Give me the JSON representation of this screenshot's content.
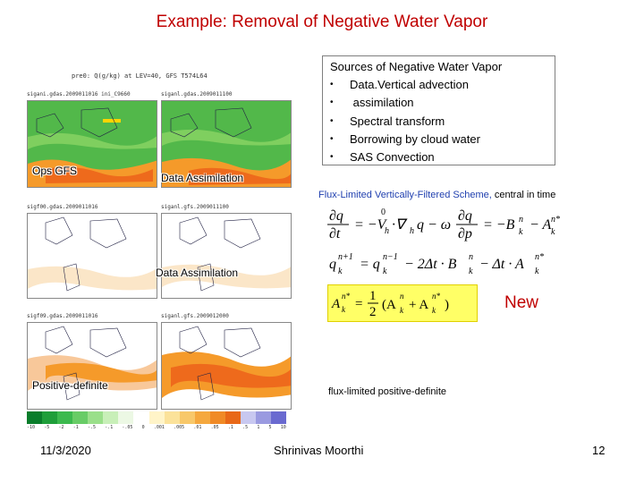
{
  "slide": {
    "title": "Example: Removal of Negative Water Vapor",
    "date": "11/3/2020",
    "author": "Shrinivas Moorthi",
    "page_number": "12"
  },
  "maps": {
    "header": "pre0: Q(g/kg) at LEV=40, GFS T574L64",
    "panels": [
      {
        "label": "sigani.gdas.2009011016  ini_C9660"
      },
      {
        "label": "siganl.gdas.2009011100"
      },
      {
        "label": "sigf00.gdas.2009011016"
      },
      {
        "label": "siganl.gfs.2009011100"
      },
      {
        "label": "sigf09.gdas.2009011016"
      },
      {
        "label": "siganl.gfs.2009012000"
      }
    ],
    "overlay_labels": {
      "ops_gfs": "Ops GFS",
      "data_assim_1": "Data Assimilation",
      "data_assim_2": "Data Assimilation",
      "positive_definite": "Positive-definite"
    },
    "colorbar_ticks": [
      "-10",
      "-5",
      "-2",
      "-1",
      "-.5",
      "-.1",
      "-.05",
      "0",
      ".001",
      ".005",
      ".01",
      ".05",
      ".1",
      ".5",
      "1",
      "5",
      "10"
    ]
  },
  "sources": {
    "heading": "Sources of Negative Water Vapor",
    "items": [
      "Data.Vertical advection",
      " assimilation",
      "Spectral transform",
      "Borrowing by cloud water",
      "SAS Convection"
    ]
  },
  "scheme": {
    "prefix": "Flux-Limited Vertically-Filtered Scheme,",
    "suffix": "central in time"
  },
  "new_label": "New",
  "flux_label": "flux-limited positive-definite",
  "colors": {
    "title": "#c00000",
    "highlight": "#ffff66",
    "scheme_blue": "#1f3faf"
  }
}
